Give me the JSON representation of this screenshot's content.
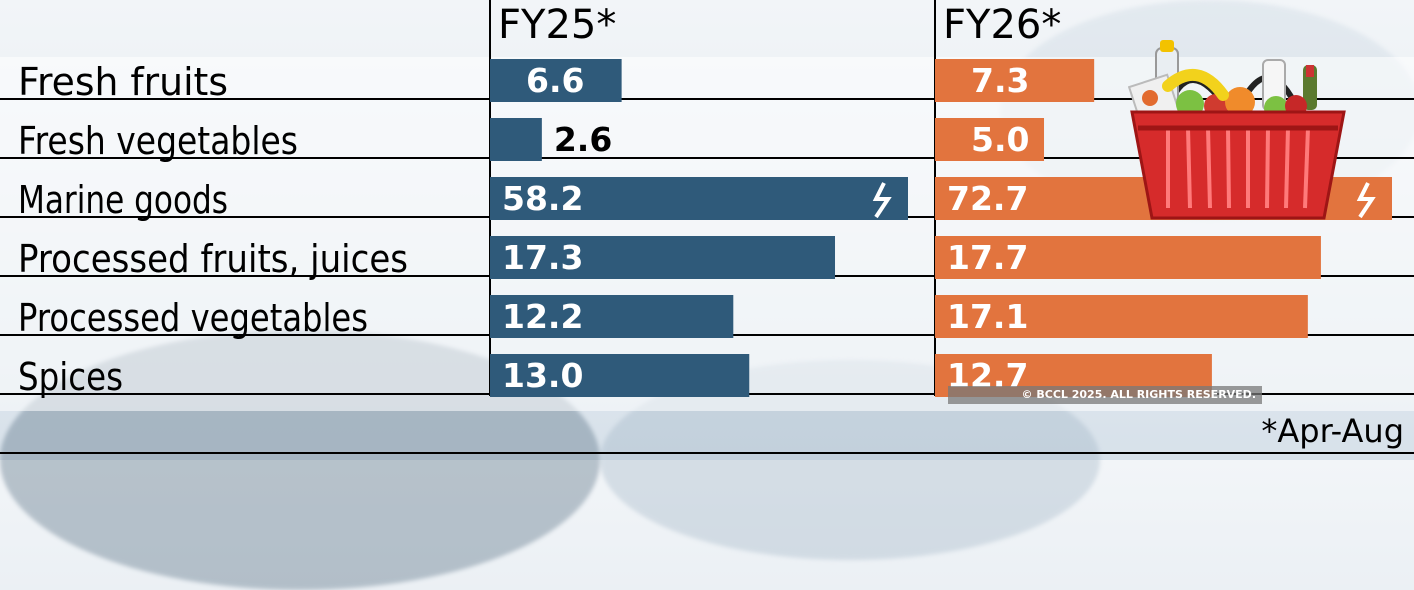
{
  "chart_data": {
    "type": "bar",
    "categories": [
      "Fresh fruits",
      "Fresh vegetables",
      "Marine goods",
      "Processed fruits, juices",
      "Processed vegetables",
      "Spices"
    ],
    "series": [
      {
        "name": "FY25*",
        "values": [
          6.6,
          2.6,
          58.2,
          17.3,
          12.2,
          13.0
        ],
        "labels": [
          "6.6",
          "2.6",
          "58.2",
          "17.3",
          "12.2",
          "13.0"
        ]
      },
      {
        "name": "FY26*",
        "values": [
          7.3,
          5.0,
          72.7,
          17.7,
          17.1,
          12.7
        ],
        "labels": [
          "7.3",
          "5.0",
          "72.7",
          "17.7",
          "17.1",
          "12.7"
        ]
      }
    ],
    "scale_max": 20,
    "broken_axis": [
      false,
      false,
      true,
      false,
      false,
      false
    ],
    "colors": {
      "FY25*": "#2f5a7a",
      "FY26*": "#e2743e"
    },
    "title": "",
    "xlabel": "",
    "ylabel": "",
    "grid": false,
    "legend": "column headers"
  },
  "footnote": "*Apr-Aug",
  "copyright": "© BCCL 2025. ALL RIGHTS RESERVED.",
  "illustration": "grocery-basket-icon"
}
